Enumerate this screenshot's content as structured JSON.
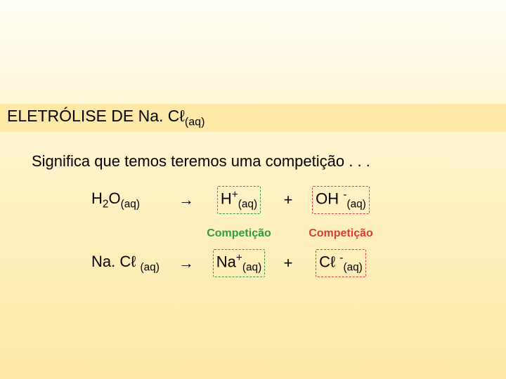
{
  "title": {
    "prefix": "ELETRÓLISE DE Na. Cℓ",
    "sub": "(aq)"
  },
  "subtitle": "Significa que temos teremos uma competição . . .",
  "eq1": {
    "reactant_base": "H",
    "reactant_sub1": "2",
    "reactant_mid": "O",
    "reactant_sub2": "(aq)",
    "arrow": "→",
    "cation_base": "H",
    "cation_sup": "+",
    "cation_sub": "(aq)",
    "plus": "+",
    "anion_base": "OH ",
    "anion_sup": "-",
    "anion_sub": "(aq)"
  },
  "eq2": {
    "reactant_base": "Na. Cℓ ",
    "reactant_sub": "(aq)",
    "arrow": "→",
    "cation_base": "Na",
    "cation_sup": "+",
    "cation_sub": "(aq)",
    "plus": "+",
    "anion_base": "Cℓ ",
    "anion_sup": "-",
    "anion_sub": "(aq)"
  },
  "labels": {
    "comp_green": "Competição",
    "comp_red": "Competição"
  },
  "colors": {
    "green": "#2e9b3e",
    "red": "#d93a3a",
    "band": "#fde8a8"
  }
}
